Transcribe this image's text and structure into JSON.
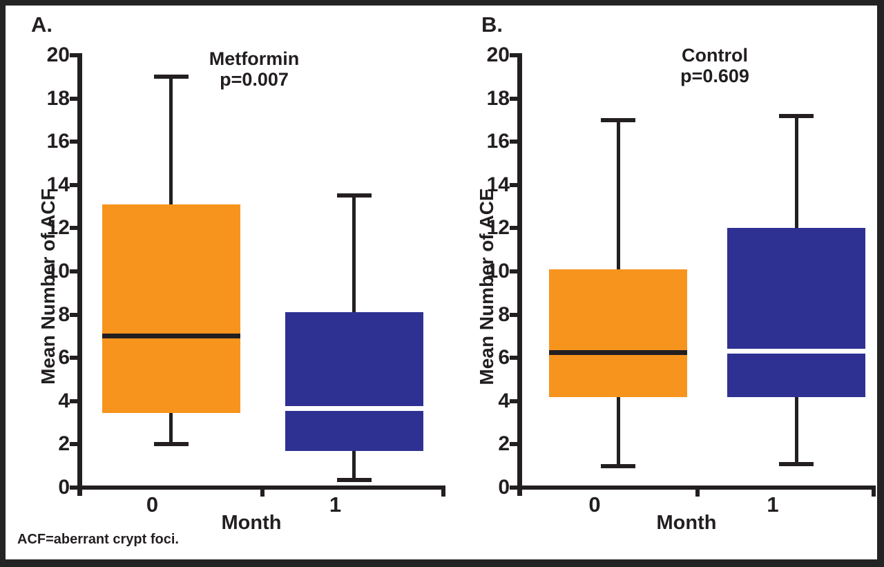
{
  "figure": {
    "footnote": "ACF=aberrant crypt foci."
  },
  "colors": {
    "orange": "#F7941E",
    "blue": "#2E3192",
    "axis_black": "#231F20",
    "median_white": "#FFFFFF",
    "background": "#FFFFFF",
    "frame_border": "#242424"
  },
  "chart_data": [
    {
      "type": "box",
      "panel_label": "A.",
      "title": "Metformin",
      "subtitle": "p=0.007",
      "xlabel": "Month",
      "ylabel": "Mean Number of ACF",
      "ylim": [
        0,
        20
      ],
      "yticks": [
        0,
        2,
        4,
        6,
        8,
        10,
        12,
        14,
        16,
        18,
        20
      ],
      "grid": false,
      "categories": [
        "0",
        "1"
      ],
      "series": [
        {
          "category": "0",
          "box_color": "#F7941E",
          "median_color": "#231F20",
          "whisker_low": 2.0,
          "q1": 3.45,
          "median": 7.0,
          "q3": 13.1,
          "whisker_high": 19.0
        },
        {
          "category": "1",
          "box_color": "#2E3192",
          "median_color": "#FFFFFF",
          "whisker_low": 0.35,
          "q1": 1.7,
          "median": 3.65,
          "q3": 8.1,
          "whisker_high": 13.5
        }
      ]
    },
    {
      "type": "box",
      "panel_label": "B.",
      "title": "Control",
      "subtitle": "p=0.609",
      "xlabel": "Month",
      "ylabel": "Mean Number of ACE",
      "ylim": [
        0,
        20
      ],
      "yticks": [
        0,
        2,
        4,
        6,
        8,
        10,
        12,
        14,
        16,
        18,
        20
      ],
      "grid": false,
      "categories": [
        "0",
        "1"
      ],
      "series": [
        {
          "category": "0",
          "box_color": "#F7941E",
          "median_color": "#231F20",
          "whisker_low": 1.0,
          "q1": 4.2,
          "median": 6.25,
          "q3": 10.1,
          "whisker_high": 17.0
        },
        {
          "category": "1",
          "box_color": "#2E3192",
          "median_color": "#FFFFFF",
          "whisker_low": 1.1,
          "q1": 4.2,
          "median": 6.3,
          "q3": 12.0,
          "whisker_high": 17.2
        }
      ]
    }
  ]
}
